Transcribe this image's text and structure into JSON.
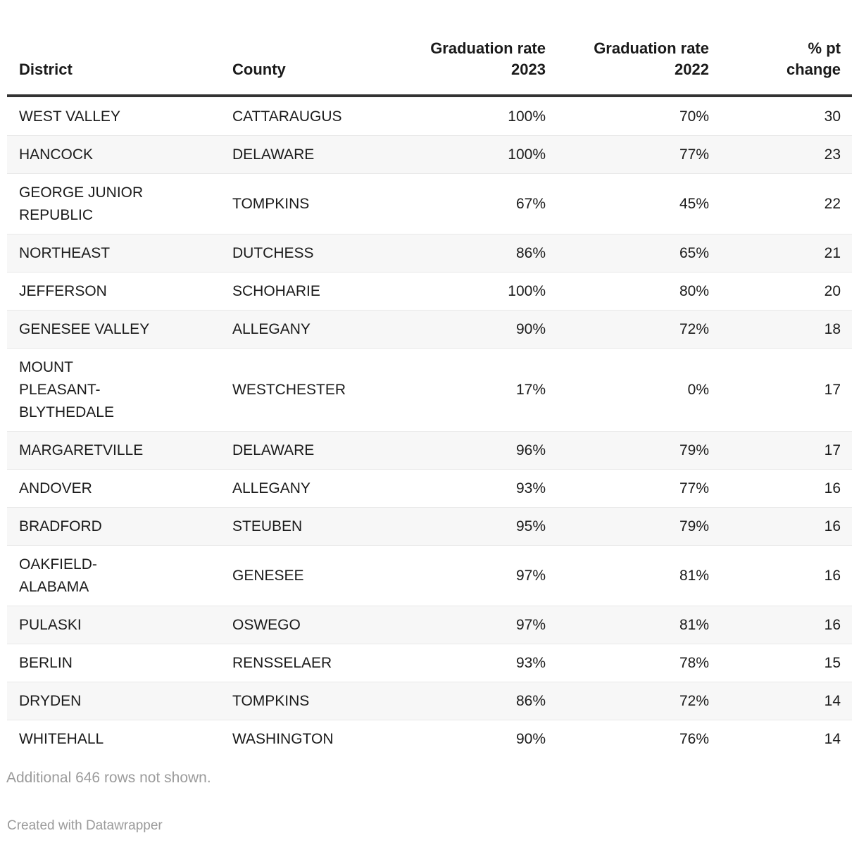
{
  "chart_data": {
    "type": "table",
    "columns": [
      {
        "key": "district",
        "label": "District",
        "align": "left"
      },
      {
        "key": "county",
        "label": "County",
        "align": "left"
      },
      {
        "key": "grad-rate-2023",
        "label": "Graduation rate 2023",
        "align": "right"
      },
      {
        "key": "grad-rate-2022",
        "label": "Graduation rate 2022",
        "align": "right"
      },
      {
        "key": "pct-pt-change",
        "label": "% pt change",
        "align": "right"
      }
    ],
    "rows": [
      [
        "WEST VALLEY",
        "CATTARAUGUS",
        "100%",
        "70%",
        "30"
      ],
      [
        "HANCOCK",
        "DELAWARE",
        "100%",
        "77%",
        "23"
      ],
      [
        "GEORGE JUNIOR REPUBLIC",
        "TOMPKINS",
        "67%",
        "45%",
        "22"
      ],
      [
        "NORTHEAST",
        "DUTCHESS",
        "86%",
        "65%",
        "21"
      ],
      [
        "JEFFERSON",
        "SCHOHARIE",
        "100%",
        "80%",
        "20"
      ],
      [
        "GENESEE VALLEY",
        "ALLEGANY",
        "90%",
        "72%",
        "18"
      ],
      [
        "MOUNT PLEASANT-BLYTHEDALE",
        "WESTCHESTER",
        "17%",
        "0%",
        "17"
      ],
      [
        "MARGARETVILLE",
        "DELAWARE",
        "96%",
        "79%",
        "17"
      ],
      [
        "ANDOVER",
        "ALLEGANY",
        "93%",
        "77%",
        "16"
      ],
      [
        "BRADFORD",
        "STEUBEN",
        "95%",
        "79%",
        "16"
      ],
      [
        "OAKFIELD-ALABAMA",
        "GENESEE",
        "97%",
        "81%",
        "16"
      ],
      [
        "PULASKI",
        "OSWEGO",
        "97%",
        "81%",
        "16"
      ],
      [
        "BERLIN",
        "RENSSELAER",
        "93%",
        "78%",
        "15"
      ],
      [
        "DRYDEN",
        "TOMPKINS",
        "86%",
        "72%",
        "14"
      ],
      [
        "WHITEHALL",
        "WASHINGTON",
        "90%",
        "76%",
        "14"
      ]
    ],
    "layout_hints": {
      "row_stripes": "alternating",
      "stripe_rows": "even",
      "header_rule": true
    }
  },
  "footer": {
    "note": "Additional 646 rows not shown.",
    "credit": "Created with Datawrapper"
  },
  "colors": {
    "text": "#1a1a1a",
    "muted_text": "#9b9b9b",
    "stripe": "#f7f7f7",
    "row_border": "#e8e8e8",
    "header_rule": "#333333",
    "background": "#ffffff"
  }
}
